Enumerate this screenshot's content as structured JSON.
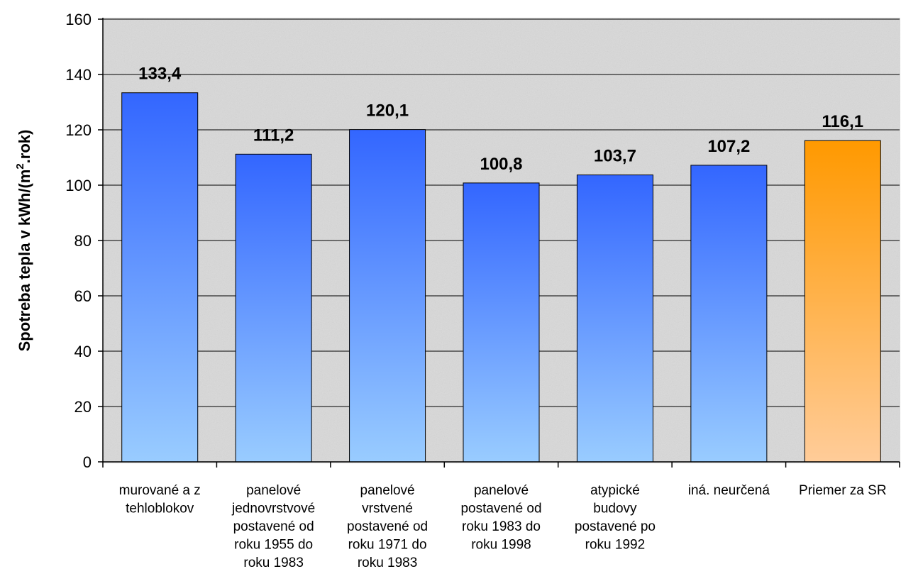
{
  "chart_data": {
    "type": "bar",
    "ylabel": "Spotreba tepla v kWh/(m².rok)",
    "ylabel_parts": [
      "Spotreba tepla v kWh/(m",
      "2",
      ".rok)"
    ],
    "ylim": [
      0,
      160
    ],
    "yticks": [
      "0",
      "20",
      "40",
      "60",
      "80",
      "100",
      "120",
      "140",
      "160"
    ],
    "grid": true,
    "categories": [
      [
        "murované a z",
        "tehloblokov"
      ],
      [
        "panelové",
        "jednovrstvové",
        "postavené od",
        "roku 1955 do",
        "roku 1983"
      ],
      [
        "panelové",
        "vrstvené",
        "postavené od",
        "roku 1971 do",
        "roku 1983"
      ],
      [
        "panelové",
        "postavené od",
        "roku 1983 do",
        "roku 1998"
      ],
      [
        "atypické",
        "budovy",
        "postavené po",
        "roku 1992"
      ],
      [
        "iná. neurčená"
      ],
      [
        "Priemer za SR"
      ]
    ],
    "values": [
      133.4,
      111.2,
      120.1,
      100.8,
      103.7,
      107.2,
      116.1
    ],
    "value_labels": [
      "133,4",
      "111,2",
      "120,1",
      "100,8",
      "103,7",
      "107,2",
      "116,1"
    ],
    "colors": {
      "bar_top": "#3366ff",
      "bar_bottom": "#99ccff",
      "highlight_top": "#ff9900",
      "highlight_bottom": "#ffcc99",
      "highlight_index": 6,
      "plot_background": "#d9d9d9",
      "gridline": "#000000"
    }
  }
}
